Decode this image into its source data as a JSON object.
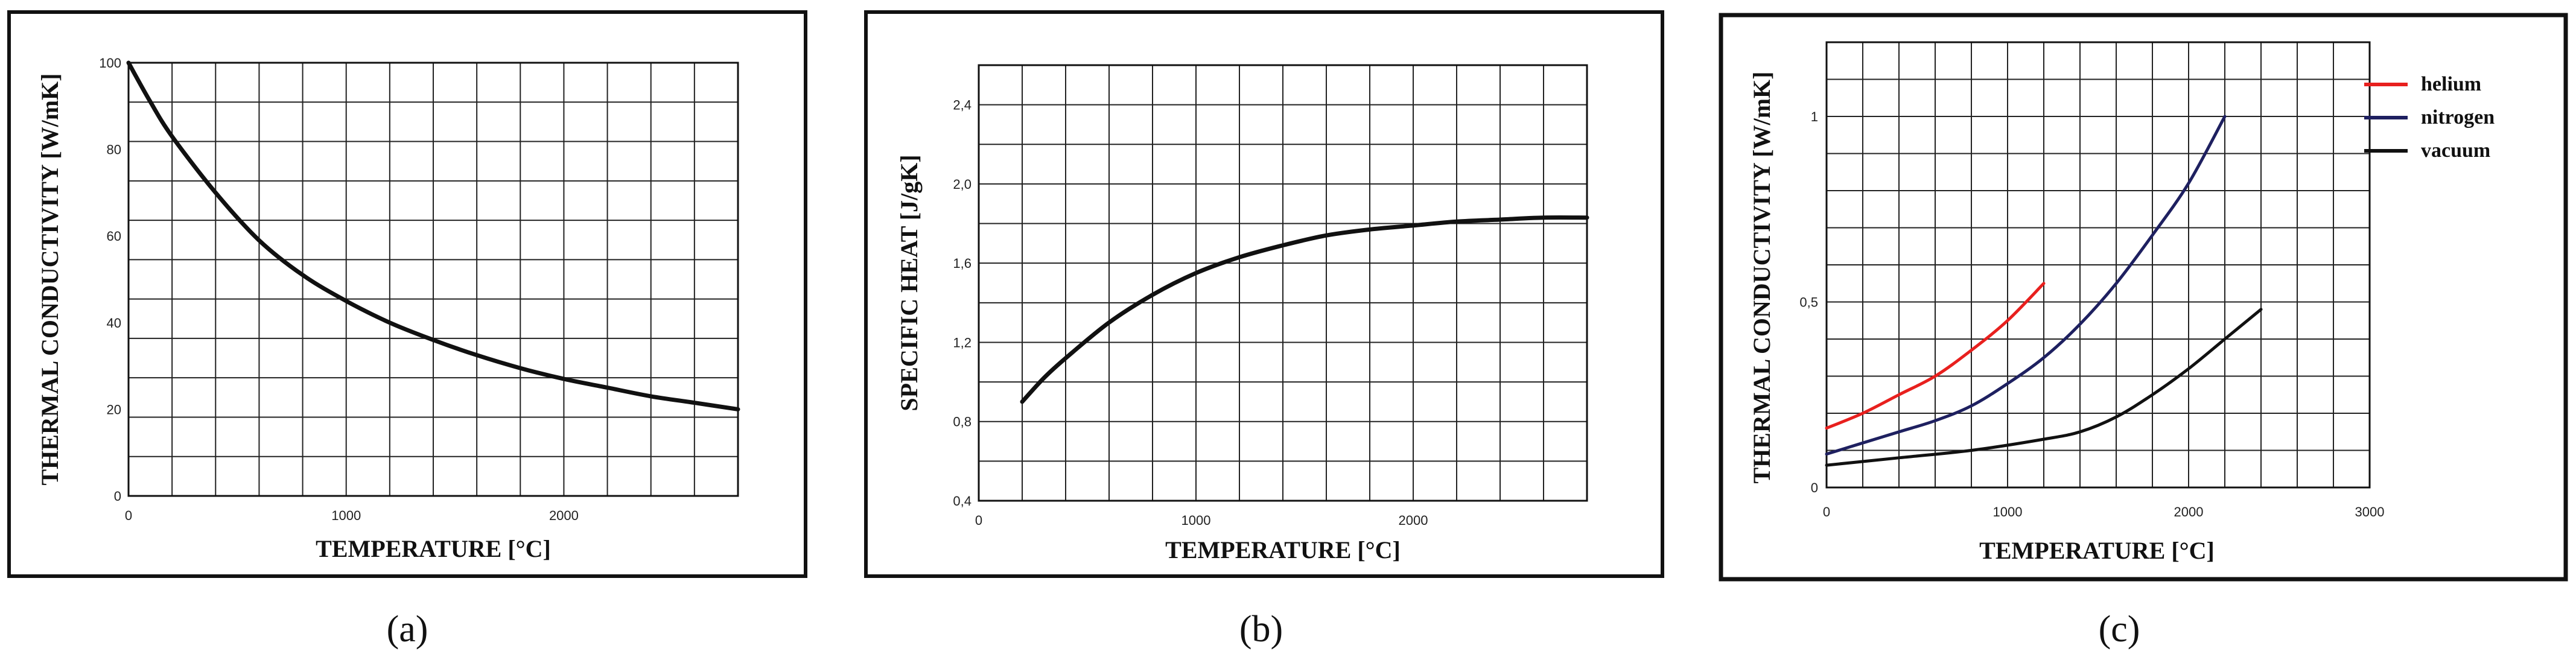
{
  "chart_data": [
    {
      "type": "line",
      "panel": "a",
      "caption": "(a)",
      "xlabel": "TEMPERATURE [°C]",
      "ylabel": "THERMAL CONDUCTIVITY [W/mK]",
      "xlim": [
        0,
        2800
      ],
      "ylim": [
        0,
        100
      ],
      "xticks": [
        0,
        1000,
        2000
      ],
      "yticks": [
        0,
        20,
        40,
        60,
        80,
        100
      ],
      "xtick_labels": [
        "0",
        "1000",
        "2000"
      ],
      "ytick_labels": [
        "0",
        "20",
        "40",
        "60",
        "80",
        "100"
      ],
      "grid_x": 14,
      "grid_y": 11,
      "series": [
        {
          "name": "conductivity",
          "color": "#111111",
          "x": [
            0,
            100,
            200,
            400,
            600,
            800,
            1000,
            1200,
            1400,
            1600,
            1800,
            2000,
            2200,
            2400,
            2600,
            2800
          ],
          "y": [
            100,
            91,
            83,
            70,
            59,
            51,
            45,
            40,
            36,
            32.5,
            29.5,
            27,
            25,
            23,
            21.5,
            20
          ]
        }
      ]
    },
    {
      "type": "line",
      "panel": "b",
      "caption": "(b)",
      "xlabel": "TEMPERATURE [°C]",
      "ylabel": "SPECIFIC HEAT [J/gK]",
      "xlim": [
        0,
        2800
      ],
      "ylim": [
        0.4,
        2.6
      ],
      "xticks": [
        0,
        1000,
        2000
      ],
      "yticks": [
        0.4,
        0.8,
        1.2,
        1.6,
        2.0,
        2.4
      ],
      "xtick_labels": [
        "0",
        "1000",
        "2000"
      ],
      "ytick_labels": [
        "0,4",
        "0,8",
        "1,2",
        "1,6",
        "2,0",
        "2,4"
      ],
      "grid_x": 14,
      "grid_y": 11,
      "series": [
        {
          "name": "specific heat",
          "color": "#111111",
          "x": [
            200,
            300,
            400,
            600,
            800,
            1000,
            1200,
            1400,
            1600,
            1800,
            2000,
            2200,
            2400,
            2600,
            2800
          ],
          "y": [
            0.9,
            1.02,
            1.12,
            1.3,
            1.44,
            1.55,
            1.63,
            1.69,
            1.74,
            1.77,
            1.79,
            1.81,
            1.82,
            1.83,
            1.83
          ]
        }
      ]
    },
    {
      "type": "line",
      "panel": "c",
      "caption": "(c)",
      "xlabel": "TEMPERATURE [°C]",
      "ylabel": "THERMAL CONDUCTIVITY [W/mK]",
      "xlim": [
        0,
        3000
      ],
      "ylim": [
        0,
        1.2
      ],
      "xticks": [
        0,
        1000,
        2000,
        3000
      ],
      "yticks": [
        0,
        0.5,
        1
      ],
      "xtick_labels": [
        "0",
        "1000",
        "2000",
        "3000"
      ],
      "ytick_labels": [
        "0",
        "0,5",
        "1"
      ],
      "grid_x": 15,
      "grid_y": 12,
      "legend": "top-right",
      "series": [
        {
          "name": "helium",
          "color": "#e8201e",
          "x": [
            0,
            200,
            400,
            600,
            800,
            1000,
            1200
          ],
          "y": [
            0.16,
            0.2,
            0.25,
            0.3,
            0.37,
            0.45,
            0.55
          ]
        },
        {
          "name": "nitrogen",
          "color": "#1e2060",
          "x": [
            0,
            200,
            400,
            600,
            800,
            1000,
            1200,
            1400,
            1600,
            1800,
            2000,
            2200
          ],
          "y": [
            0.09,
            0.12,
            0.15,
            0.18,
            0.22,
            0.28,
            0.35,
            0.44,
            0.55,
            0.68,
            0.82,
            1.0
          ]
        },
        {
          "name": "vacuum",
          "color": "#111111",
          "x": [
            0,
            400,
            800,
            1200,
            1400,
            1600,
            1800,
            2000,
            2200,
            2400
          ],
          "y": [
            0.06,
            0.08,
            0.1,
            0.13,
            0.15,
            0.19,
            0.25,
            0.32,
            0.4,
            0.48
          ]
        }
      ]
    }
  ]
}
